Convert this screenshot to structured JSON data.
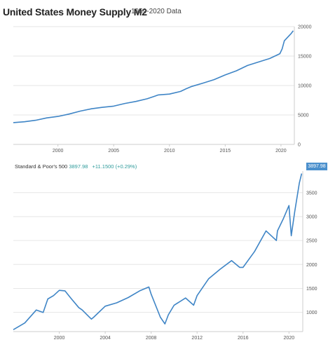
{
  "header": {
    "title": "United States Money Supply M2",
    "subtitle": "1959-2020 Data"
  },
  "legend": {
    "name": "Standard & Poor's 500",
    "value": "3897.98",
    "change": "+11.1500 (+0.29%)",
    "last_label": "3897.98"
  },
  "colors": {
    "line": "#3f85c6",
    "grid": "#e6e6e6",
    "axis": "#cccccc",
    "legend_teal": "#2e9b9b",
    "badge": "#4a8fcc"
  },
  "chart_data": [
    {
      "type": "line",
      "title": "United States Money Supply M2",
      "subtitle": "1959-2020 Data",
      "xlabel": "",
      "ylabel": "",
      "x_ticks": [
        2000,
        2005,
        2010,
        2015,
        2020
      ],
      "y_ticks": [
        0,
        5000,
        10000,
        15000,
        20000
      ],
      "xlim": [
        1996,
        2021.2
      ],
      "ylim": [
        0,
        20000
      ],
      "grid": "horizontal",
      "series": [
        {
          "x": [
            1996,
            1997,
            1998,
            1999,
            2000,
            2001,
            2002,
            2003,
            2004,
            2005,
            2006,
            2007,
            2008,
            2008.7,
            2009,
            2010,
            2011,
            2011.5,
            2012,
            2013,
            2014,
            2015,
            2016,
            2017,
            2018,
            2019,
            2019.9,
            2020.1,
            2020.3,
            2020.6,
            2020.9,
            2021.1
          ],
          "y": [
            3700,
            3850,
            4100,
            4500,
            4750,
            5150,
            5650,
            6050,
            6300,
            6500,
            6950,
            7300,
            7750,
            8200,
            8400,
            8550,
            9000,
            9450,
            9850,
            10400,
            11000,
            11800,
            12500,
            13400,
            14000,
            14600,
            15400,
            16200,
            17600,
            18200,
            18800,
            19300
          ]
        }
      ]
    },
    {
      "type": "line",
      "title": "",
      "xlabel": "",
      "ylabel": "",
      "x_ticks": [
        2000,
        2004,
        2008,
        2012,
        2016,
        2020
      ],
      "y_ticks": [
        1000,
        1500,
        2000,
        2500,
        3000,
        3500
      ],
      "xlim": [
        1996,
        2021.2
      ],
      "ylim": [
        600,
        3950
      ],
      "grid": "horizontal",
      "series": [
        {
          "name": "Standard & Poor's 500",
          "x": [
            1996,
            1997,
            1998,
            1998.6,
            1999,
            1999.5,
            2000,
            2000.5,
            2001,
            2001.7,
            2002,
            2002.8,
            2003,
            2004,
            2005,
            2006,
            2007,
            2007.8,
            2008,
            2008.8,
            2009.2,
            2009.5,
            2010,
            2011,
            2011.7,
            2012,
            2013,
            2014,
            2015,
            2015.7,
            2016,
            2017,
            2018,
            2018.9,
            2019,
            2019.5,
            2020,
            2020.2,
            2020.5,
            2020.9,
            2021.1
          ],
          "y": [
            640,
            780,
            1050,
            1000,
            1280,
            1350,
            1460,
            1450,
            1300,
            1100,
            1050,
            860,
            900,
            1130,
            1200,
            1310,
            1450,
            1530,
            1380,
            900,
            760,
            950,
            1150,
            1300,
            1150,
            1350,
            1700,
            1900,
            2080,
            1940,
            1940,
            2270,
            2700,
            2500,
            2700,
            2950,
            3230,
            2600,
            3100,
            3700,
            3898
          ]
        }
      ]
    }
  ]
}
